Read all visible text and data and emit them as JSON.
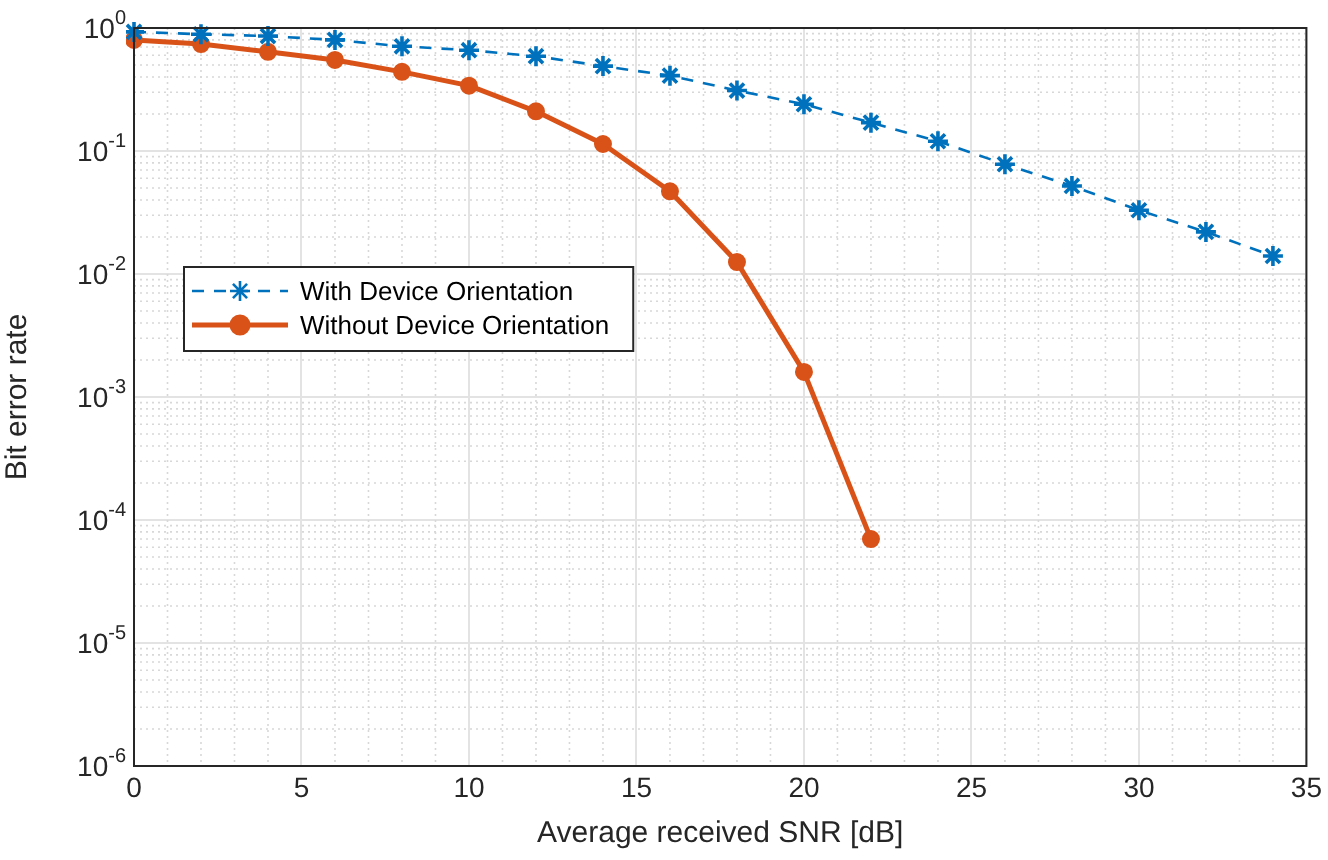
{
  "chart_data": {
    "type": "line",
    "xlabel": "Average received SNR [dB]",
    "ylabel": "Bit error rate",
    "log": "y",
    "grid": true,
    "legend": "left",
    "xlim": [
      0,
      35
    ],
    "xticks": [
      0,
      5,
      10,
      15,
      20,
      25,
      30,
      35
    ],
    "ylim": [
      1e-06,
      1
    ],
    "yticks": [
      {
        "value": 1e-06,
        "label": "10$^{-6}$"
      },
      {
        "value": 1e-05,
        "label": "10$^{-5}$"
      },
      {
        "value": 0.0001,
        "label": "10$^{-4}$"
      },
      {
        "value": 0.001,
        "label": "10$^{-3}$"
      },
      {
        "value": 0.01,
        "label": "10$^{-2}$"
      },
      {
        "value": 0.1,
        "label": "10$^{-1}$"
      },
      {
        "value": 1,
        "label": "10$^{0}$"
      }
    ],
    "x": [
      0,
      2,
      4,
      6,
      8,
      10,
      12,
      14,
      16,
      18,
      20,
      22,
      24,
      26,
      28,
      30,
      32,
      34
    ],
    "series": [
      {
        "name": "With Device Orientation",
        "color": "#0072bd",
        "marker": "cross",
        "line_style": "dashed",
        "values": [
          0.93,
          0.89,
          0.86,
          0.8,
          0.71,
          0.66,
          0.59,
          0.49,
          0.41,
          0.31,
          0.24,
          0.17,
          0.12,
          0.078,
          0.052,
          0.033,
          0.022,
          0.014
        ]
      },
      {
        "name": "Without Device Orientation",
        "color": "#d95319",
        "marker": "circle",
        "line_style": "solid",
        "values": [
          0.8,
          0.74,
          0.64,
          0.55,
          0.44,
          0.34,
          0.21,
          0.114,
          0.047,
          0.0125,
          0.0016,
          7e-05,
          null,
          null,
          null,
          null,
          null,
          null
        ]
      }
    ]
  }
}
